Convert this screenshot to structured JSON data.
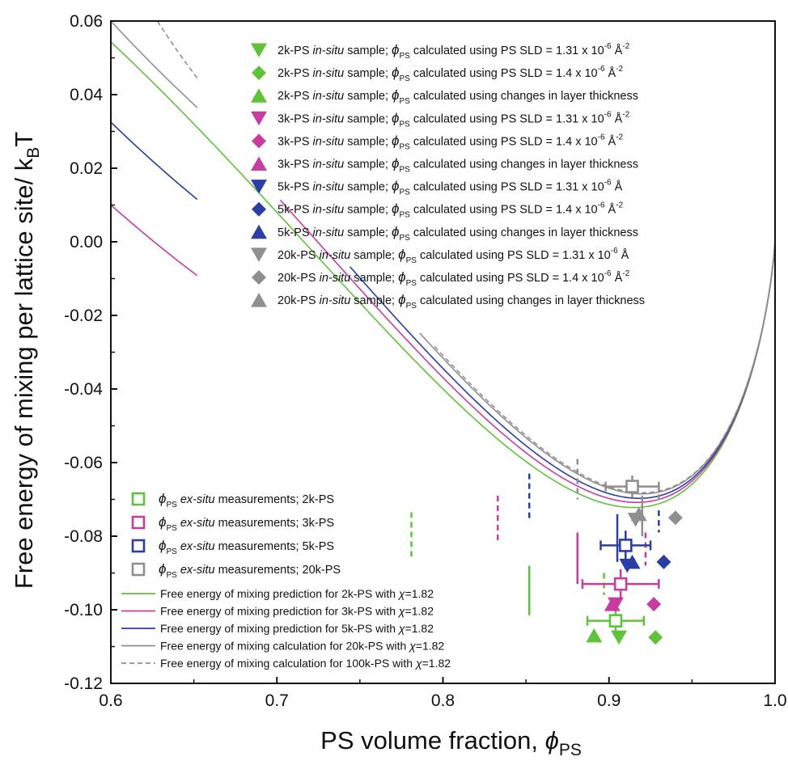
{
  "chart_data": {
    "type": "line",
    "xlabel": "PS volume fraction, ",
    "xlabel_symbol": "ϕ",
    "xlabel_sub": "PS",
    "ylabel": "Free energy of mixing per lattice site/ k",
    "ylabel_sub": "B",
    "ylabel_end": "T",
    "xlim": [
      0.6,
      1.0
    ],
    "ylim": [
      -0.12,
      0.06
    ],
    "x_ticks": [
      "0.6",
      "0.7",
      "0.8",
      "0.9",
      "1.0"
    ],
    "y_ticks": [
      "-0.12",
      "-0.10",
      "-0.08",
      "-0.06",
      "-0.04",
      "-0.02",
      "0.00",
      "0.02",
      "0.04",
      "0.06"
    ],
    "colors": {
      "2k": "#5fc23a",
      "3k": "#c83ca0",
      "5k": "#2b3ea3",
      "20k": "#8f8f8f",
      "100k": "#8f8f8f"
    },
    "series": [
      {
        "name": "Free energy of mixing prediction for 2k-PS with ",
        "chi": "χ",
        "chi_value": "=1.82",
        "color": "#5fc23a",
        "dash": false,
        "N": 19.2,
        "x_start": 0.6
      },
      {
        "name": "Free energy of mixing prediction for 3k-PS with ",
        "chi": "χ",
        "chi_value": "=1.82",
        "color": "#c83ca0",
        "dash": false,
        "N": 28.8,
        "x_start": 0.702
      },
      {
        "name": "Free energy of mixing prediction for 5k-PS with ",
        "chi": "χ",
        "chi_value": "=1.82",
        "color": "#2b3ea3",
        "dash": false,
        "N": 48.0,
        "x_start": 0.744
      },
      {
        "name": "Free energy of mixing calculation for 20k-PS with ",
        "chi": "χ",
        "chi_value": "=1.82",
        "color": "#8f8f8f",
        "dash": false,
        "N": 192.0,
        "x_start": 0.786
      },
      {
        "name": "Free energy of mixing calculation for 100k-PS with ",
        "chi": "χ",
        "chi_value": "=1.82",
        "color": "#8f8f8f",
        "dash": true,
        "N": 960.0,
        "x_start": 0.795
      }
    ],
    "upper_segments": [
      {
        "x_start": 0.6,
        "x_end": 0.652,
        "y_start": 0.06,
        "y_end": 0.0365,
        "color": "#8f8f8f",
        "dash": false
      },
      {
        "x_start": 0.628,
        "x_end": 0.652,
        "y_start": 0.06,
        "y_end": 0.0445,
        "color": "#8f8f8f",
        "dash": true
      },
      {
        "x_start": 0.6,
        "x_end": 0.652,
        "y_start": 0.0325,
        "y_end": 0.0115,
        "color": "#2b3ea3",
        "dash": false
      },
      {
        "x_start": 0.6,
        "x_end": 0.652,
        "y_start": 0.01,
        "y_end": -0.0092,
        "color": "#c83ca0",
        "dash": false
      }
    ],
    "binodal_markers": [
      {
        "x": 0.781,
        "y_low": -0.0855,
        "y_high": -0.0735,
        "color": "#5fc23a",
        "dash": true
      },
      {
        "x": 0.833,
        "y_low": -0.0815,
        "y_high": -0.069,
        "color": "#c83ca0",
        "dash": true
      },
      {
        "x": 0.852,
        "y_low": -0.0755,
        "y_high": -0.063,
        "color": "#2b3ea3",
        "dash": true
      },
      {
        "x": 0.881,
        "y_low": -0.07,
        "y_high": -0.059,
        "color": "#8f8f8f",
        "dash": true
      },
      {
        "x": 0.852,
        "y_low": -0.1015,
        "y_high": -0.088,
        "color": "#5fc23a",
        "dash": false
      },
      {
        "x": 0.881,
        "y_low": -0.093,
        "y_high": -0.079,
        "color": "#c83ca0",
        "dash": false
      },
      {
        "x": 0.905,
        "y_low": -0.087,
        "y_high": -0.074,
        "color": "#2b3ea3",
        "dash": false
      },
      {
        "x": 0.92,
        "y_low": -0.08,
        "y_high": -0.069,
        "color": "#8f8f8f",
        "dash": false
      },
      {
        "x": 0.897,
        "y_low": -0.096,
        "y_high": -0.09,
        "color": "#5fc23a",
        "dash": true
      },
      {
        "x": 0.922,
        "y_low": -0.088,
        "y_high": -0.079,
        "color": "#c83ca0",
        "dash": true
      },
      {
        "x": 0.93,
        "y_low": -0.079,
        "y_high": -0.073,
        "color": "#2b3ea3",
        "dash": true
      },
      {
        "x": 0.93,
        "y_low": -0.071,
        "y_high": -0.066,
        "color": "#8f8f8f",
        "dash": true
      }
    ],
    "ex_situ_points": [
      {
        "x": 0.904,
        "y": -0.103,
        "xerr": 0.017,
        "yerr": 0.004,
        "color": "#5fc23a"
      },
      {
        "x": 0.907,
        "y": -0.093,
        "xerr": 0.023,
        "yerr": 0.004,
        "color": "#c83ca0"
      },
      {
        "x": 0.91,
        "y": -0.0825,
        "xerr": 0.015,
        "yerr": 0.004,
        "color": "#2b3ea3"
      },
      {
        "x": 0.914,
        "y": -0.0665,
        "xerr": 0.016,
        "yerr": 0.003,
        "color": "#8f8f8f"
      }
    ],
    "in_situ_points": [
      {
        "x": 0.906,
        "y": -0.1075,
        "marker": "triangle-down",
        "color": "#5fc23a"
      },
      {
        "x": 0.928,
        "y": -0.1075,
        "marker": "diamond",
        "color": "#5fc23a"
      },
      {
        "x": 0.891,
        "y": -0.107,
        "marker": "triangle-up",
        "color": "#5fc23a"
      },
      {
        "x": 0.904,
        "y": -0.0985,
        "marker": "triangle-down",
        "color": "#c83ca0"
      },
      {
        "x": 0.927,
        "y": -0.0985,
        "marker": "diamond",
        "color": "#c83ca0"
      },
      {
        "x": 0.902,
        "y": -0.0985,
        "marker": "triangle-up",
        "color": "#c83ca0"
      },
      {
        "x": 0.911,
        "y": -0.088,
        "marker": "triangle-down",
        "color": "#2b3ea3"
      },
      {
        "x": 0.933,
        "y": -0.087,
        "marker": "diamond",
        "color": "#2b3ea3"
      },
      {
        "x": 0.914,
        "y": -0.087,
        "marker": "triangle-up",
        "color": "#2b3ea3"
      },
      {
        "x": 0.916,
        "y": -0.0755,
        "marker": "triangle-down",
        "color": "#8f8f8f"
      },
      {
        "x": 0.94,
        "y": -0.075,
        "marker": "diamond",
        "color": "#8f8f8f"
      },
      {
        "x": 0.918,
        "y": -0.074,
        "marker": "triangle-up",
        "color": "#8f8f8f"
      }
    ],
    "legend_top": [
      {
        "marker": "triangle-down",
        "color": "#5fc23a",
        "pre": "2k-PS ",
        "ital": "in-situ",
        "mid": " sample; ",
        "tail": " calculated using PS SLD = 1.31 x 10",
        "sup": "-6",
        "unit": " Å",
        "unit_sup": "-2"
      },
      {
        "marker": "diamond",
        "color": "#5fc23a",
        "pre": "2k-PS ",
        "ital": "in-situ",
        "mid": " sample; ",
        "tail": " calculated using PS SLD = 1.4 x 10",
        "sup": "-6",
        "unit": " Å",
        "unit_sup": "-2"
      },
      {
        "marker": "triangle-up",
        "color": "#5fc23a",
        "pre": "2k-PS ",
        "ital": "in-situ",
        "mid": " sample; ",
        "tail": " calculated using changes in layer thickness",
        "sup": "",
        "unit": "",
        "unit_sup": ""
      },
      {
        "marker": "triangle-down",
        "color": "#c83ca0",
        "pre": "3k-PS ",
        "ital": "in-situ",
        "mid": " sample; ",
        "tail": " calculated using PS SLD = 1.31 x 10",
        "sup": "-6",
        "unit": " Å",
        "unit_sup": "-2"
      },
      {
        "marker": "diamond",
        "color": "#c83ca0",
        "pre": "3k-PS ",
        "ital": "in-situ",
        "mid": " sample; ",
        "tail": " calculated using PS SLD = 1.4 x 10",
        "sup": "-6",
        "unit": " Å",
        "unit_sup": "-2"
      },
      {
        "marker": "triangle-up",
        "color": "#c83ca0",
        "pre": "3k-PS ",
        "ital": "in-situ",
        "mid": " sample; ",
        "tail": " calculated using changes in layer thickness",
        "sup": "",
        "unit": "",
        "unit_sup": ""
      },
      {
        "marker": "triangle-down",
        "color": "#2b3ea3",
        "pre": "5k-PS ",
        "ital": "in-situ",
        "mid": " sample; ",
        "tail": " calculated using PS SLD = 1.31 x 10",
        "sup": "-6",
        "unit": " Å",
        "unit_sup": ""
      },
      {
        "marker": "diamond",
        "color": "#2b3ea3",
        "pre": "5k-PS ",
        "ital": "in-situ",
        "mid": " sample; ",
        "tail": " calculated using PS SLD = 1.4 x 10",
        "sup": "-6",
        "unit": " Å",
        "unit_sup": "-2"
      },
      {
        "marker": "triangle-up",
        "color": "#2b3ea3",
        "pre": "5k-PS ",
        "ital": "in-situ",
        "mid": " sample; ",
        "tail": " calculated using changes in layer thickness",
        "sup": "",
        "unit": "",
        "unit_sup": ""
      },
      {
        "marker": "triangle-down",
        "color": "#8f8f8f",
        "pre": "20k-PS ",
        "ital": "in-situ",
        "mid": " sample; ",
        "tail": " calculated using PS SLD = 1.31 x 10",
        "sup": "-6",
        "unit": " Å",
        "unit_sup": ""
      },
      {
        "marker": "diamond",
        "color": "#8f8f8f",
        "pre": "20k-PS ",
        "ital": "in-situ",
        "mid": " sample; ",
        "tail": " calculated using PS SLD = 1.4 x 10",
        "sup": "-6",
        "unit": " Å",
        "unit_sup": "-2"
      },
      {
        "marker": "triangle-up",
        "color": "#8f8f8f",
        "pre": "20k-PS ",
        "ital": "in-situ",
        "mid": " sample; ",
        "tail": " calculated using changes in layer thickness",
        "sup": "",
        "unit": "",
        "unit_sup": ""
      }
    ],
    "legend_top_phi": "ϕ",
    "legend_top_phi_sub": "PS",
    "legend_bottom_squares": [
      {
        "color": "#5fc23a",
        "phi": "ϕ",
        "sub": "PS",
        "ital": " ex-situ",
        "text": " measurements; 2k-PS"
      },
      {
        "color": "#c83ca0",
        "phi": "ϕ",
        "sub": "PS",
        "ital": " ex-situ",
        "text": " measurements; 3k-PS"
      },
      {
        "color": "#2b3ea3",
        "phi": "ϕ",
        "sub": "PS",
        "ital": " ex-situ",
        "text": " measurements; 5k-PS"
      },
      {
        "color": "#8f8f8f",
        "phi": "ϕ",
        "sub": "PS",
        "ital": " ex-situ",
        "text": " measurements; 20k-PS"
      }
    ]
  }
}
